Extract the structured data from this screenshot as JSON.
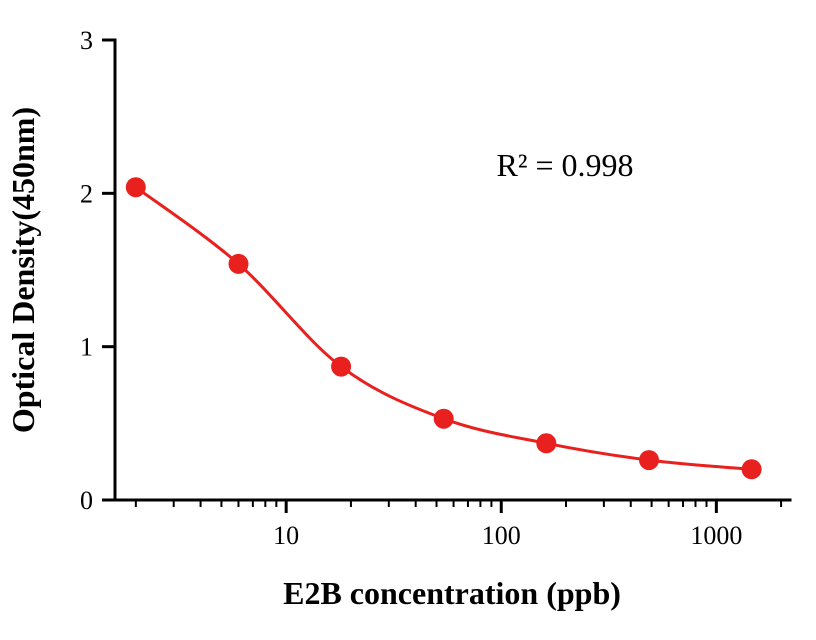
{
  "page": {
    "background": "#ffffff"
  },
  "chart_data": {
    "type": "scatter",
    "subtype": "line-with-markers",
    "title": "",
    "xlabel": "E2B concentration (ppb)",
    "ylabel": "Optical Density(450nm)",
    "annotation": "R² = 0.998",
    "x_scale": "log",
    "y_scale": "linear",
    "x": [
      2,
      6,
      18,
      54,
      162,
      486,
      1458
    ],
    "y": [
      2.04,
      1.54,
      0.87,
      0.53,
      0.37,
      0.26,
      0.2
    ],
    "xlim": [
      1.6,
      2200
    ],
    "ylim": [
      0,
      3
    ],
    "x_ticks": [
      10,
      100,
      1000
    ],
    "y_ticks": [
      0,
      1,
      2,
      3
    ],
    "grid": false,
    "legend": null,
    "colors": {
      "line": "#e8201e",
      "marker": "#e8201e",
      "axis": "#000000",
      "text": "#000000"
    },
    "marker_radius": 10,
    "line_width": 3,
    "axis_width": 3
  }
}
